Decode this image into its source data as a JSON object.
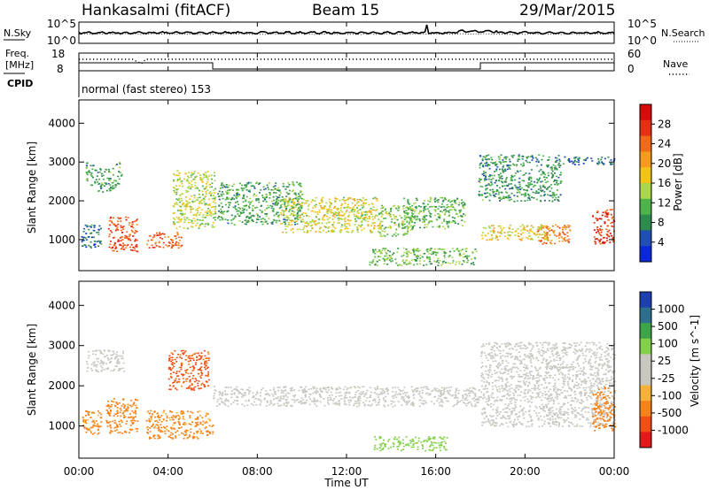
{
  "header": {
    "station": "Hankasalmi (fitACF)",
    "beam": "Beam 15",
    "date": "29/Mar/2015"
  },
  "strip_panels": {
    "noise": {
      "left_label": "N.Sky",
      "right_label": "N.Search",
      "left_ticks": [
        "10^5",
        "10^0"
      ],
      "right_ticks": [
        "10^5",
        "10^0"
      ]
    },
    "freq": {
      "left_label_1": "Freq.",
      "left_label_2": "[MHz]",
      "right_label": "Nave",
      "left_ticks": [
        "18",
        "8"
      ],
      "right_ticks": [
        "60",
        "0"
      ]
    },
    "cpid": {
      "label": "CPID",
      "program": "normal (fast stereo) 153"
    }
  },
  "colors": {
    "power_scale": [
      "#0a28d8",
      "#1f4fb4",
      "#2e8a4e",
      "#4db34a",
      "#a9d64a",
      "#f2c418",
      "#f59a1c",
      "#f06a1a",
      "#e63014",
      "#d60b0b"
    ],
    "velocity_scale": [
      "#e31a1c",
      "#f04e14",
      "#f6821a",
      "#f4b23a",
      "#c8c8c0",
      "#c8c8c0",
      "#84d04a",
      "#3fa34a",
      "#2f6f8e",
      "#1d3fb0"
    ],
    "ground_scatter": "#c8c8c0"
  },
  "chart_data": [
    {
      "type": "heatmap",
      "name": "power",
      "ylabel": "Slant Range [km]",
      "xlabel": "",
      "yticks": [
        "1000",
        "2000",
        "3000",
        "4000"
      ],
      "ylim": [
        200,
        4600
      ],
      "xlim_hours": [
        0,
        24
      ],
      "colorbar": {
        "label": "Power [dB]",
        "ticks": [
          "4",
          "8",
          "12",
          "16",
          "20",
          "24",
          "28"
        ],
        "range": [
          0,
          32
        ]
      },
      "regions": [
        {
          "t": [
            0.3,
            1.9
          ],
          "r": [
            2350,
            2950
          ],
          "v": 10,
          "curve": "arc_up"
        },
        {
          "t": [
            0.1,
            1.0
          ],
          "r": [
            800,
            1400
          ],
          "v": 6
        },
        {
          "t": [
            1.3,
            2.6
          ],
          "r": [
            700,
            1600
          ],
          "v": 26
        },
        {
          "t": [
            3.0,
            4.6
          ],
          "r": [
            800,
            1200
          ],
          "v": 25
        },
        {
          "t": [
            4.2,
            6.1
          ],
          "r": [
            1300,
            2800
          ],
          "v": 15
        },
        {
          "t": [
            6.2,
            10.0
          ],
          "r": [
            1400,
            2500
          ],
          "v": 10
        },
        {
          "t": [
            9.0,
            13.5
          ],
          "r": [
            1200,
            2100
          ],
          "v": 16
        },
        {
          "t": [
            13.4,
            15.0
          ],
          "r": [
            1100,
            1900
          ],
          "v": 13
        },
        {
          "t": [
            14.5,
            17.3
          ],
          "r": [
            1300,
            2100
          ],
          "v": 11
        },
        {
          "t": [
            13.0,
            17.8
          ],
          "r": [
            350,
            800
          ],
          "v": 12
        },
        {
          "t": [
            17.9,
            21.6
          ],
          "r": [
            2000,
            3200
          ],
          "v": 9
        },
        {
          "t": [
            18.0,
            21.0
          ],
          "r": [
            1000,
            1400
          ],
          "v": 17
        },
        {
          "t": [
            21.6,
            24.0
          ],
          "r": [
            2950,
            3150
          ],
          "v": 6
        },
        {
          "t": [
            20.5,
            22.0
          ],
          "r": [
            900,
            1400
          ],
          "v": 23
        },
        {
          "t": [
            23.0,
            24.0
          ],
          "r": [
            900,
            1800
          ],
          "v": 27
        }
      ]
    },
    {
      "type": "heatmap",
      "name": "velocity",
      "ylabel": "Slant Range [km]",
      "xlabel": "Time UT",
      "yticks": [
        "1000",
        "2000",
        "3000",
        "4000"
      ],
      "xticks": [
        "00:00",
        "04:00",
        "08:00",
        "12:00",
        "16:00",
        "20:00",
        "00:00"
      ],
      "ylim": [
        200,
        4600
      ],
      "xlim_hours": [
        0,
        24
      ],
      "colorbar": {
        "label": "Velocity [m s^-1]",
        "ticks": [
          "1000",
          "500",
          "100",
          "25",
          "-25",
          "-100",
          "-500",
          "-1000"
        ]
      },
      "regions": [
        {
          "t": [
            0.3,
            2.0
          ],
          "r": [
            2350,
            2900
          ],
          "v": "gs"
        },
        {
          "t": [
            0.1,
            1.0
          ],
          "r": [
            800,
            1400
          ],
          "v": -150
        },
        {
          "t": [
            1.2,
            2.6
          ],
          "r": [
            800,
            1700
          ],
          "v": -300
        },
        {
          "t": [
            3.0,
            6.0
          ],
          "r": [
            700,
            1400
          ],
          "v": -120
        },
        {
          "t": [
            4.0,
            5.8
          ],
          "r": [
            1900,
            2900
          ],
          "v": -700
        },
        {
          "t": [
            6.0,
            18.0
          ],
          "r": [
            1500,
            2000
          ],
          "v": "gs"
        },
        {
          "t": [
            13.2,
            16.5
          ],
          "r": [
            400,
            750
          ],
          "v": 60
        },
        {
          "t": [
            18.0,
            24.0
          ],
          "r": [
            1000,
            3100
          ],
          "v": "gs"
        },
        {
          "t": [
            23.0,
            24.0
          ],
          "r": [
            900,
            2000
          ],
          "v": -250
        }
      ]
    }
  ]
}
